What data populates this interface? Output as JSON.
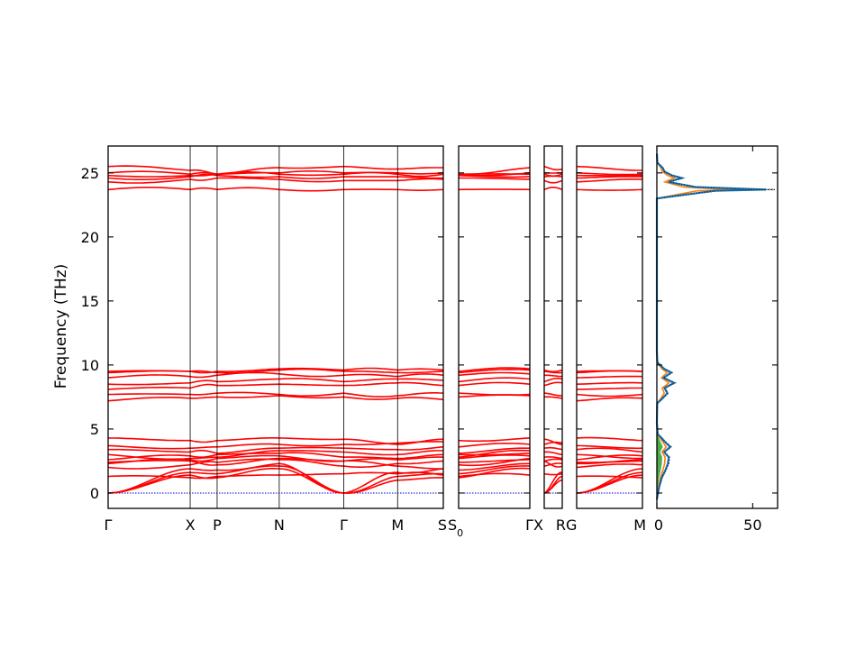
{
  "chart_data": {
    "type": "line",
    "ylabel": "Frequency (THz)",
    "ylim": [
      -1.2,
      27.1
    ],
    "yticks": [
      0,
      5,
      10,
      15,
      20,
      25
    ],
    "panels": [
      {
        "segments": [
          {
            "from": "Γ",
            "to": "X",
            "weight": 3.5
          },
          {
            "from": "X",
            "to": "P",
            "weight": 1.15
          },
          {
            "from": "P",
            "to": "N",
            "weight": 2.65
          },
          {
            "from": "N",
            "to": "Γ",
            "weight": 2.75
          },
          {
            "from": "Γ",
            "to": "M",
            "weight": 2.3
          },
          {
            "from": "M",
            "to": "S",
            "weight": 1.95
          }
        ],
        "labels": [
          "Γ",
          "X",
          "P",
          "N",
          "Γ",
          "M",
          "S"
        ]
      },
      {
        "segments": [
          {
            "from": "S0",
            "to": "Γ",
            "weight": 3.0
          }
        ],
        "labels": [
          "S0",
          "Γ"
        ]
      },
      {
        "segments": [
          {
            "from": "X",
            "to": "R",
            "weight": 0.8
          }
        ],
        "labels": [
          "X",
          "R"
        ]
      },
      {
        "segments": [
          {
            "from": "G",
            "to": "M",
            "weight": 2.8
          }
        ],
        "labels": [
          "G",
          "M"
        ]
      }
    ],
    "band_color": "#ff0000",
    "zero_line_color": "#0000cc",
    "bands": [
      [
        0.0,
        1.4,
        1.2,
        1.9,
        0.0,
        1.0,
        1.2
      ],
      [
        0.0,
        1.6,
        1.5,
        2.1,
        0.0,
        1.3,
        1.5
      ],
      [
        0.0,
        1.9,
        1.8,
        2.3,
        0.0,
        1.6,
        1.9
      ],
      [
        1.3,
        1.2,
        1.3,
        1.4,
        1.5,
        1.5,
        1.4
      ],
      [
        2.0,
        2.2,
        2.4,
        2.6,
        2.1,
        2.3,
        2.5
      ],
      [
        2.3,
        2.6,
        2.7,
        2.9,
        2.5,
        2.6,
        2.8
      ],
      [
        2.6,
        2.9,
        3.0,
        3.1,
        2.8,
        2.7,
        3.0
      ],
      [
        3.0,
        2.7,
        2.8,
        3.3,
        3.2,
        3.0,
        3.3
      ],
      [
        3.4,
        3.2,
        3.1,
        3.5,
        3.5,
        3.4,
        3.6
      ],
      [
        3.7,
        3.5,
        3.6,
        3.8,
        3.8,
        3.9,
        4.0
      ],
      [
        4.3,
        4.1,
        4.1,
        4.3,
        4.2,
        3.8,
        4.2
      ],
      [
        2.4,
        2.5,
        2.2,
        2.7,
        2.5,
        2.1,
        1.9
      ],
      [
        7.2,
        7.4,
        7.5,
        7.6,
        7.5,
        7.4,
        7.3
      ],
      [
        7.7,
        7.7,
        7.8,
        7.7,
        7.8,
        7.6,
        7.8
      ],
      [
        8.1,
        8.2,
        8.4,
        8.5,
        8.4,
        8.6,
        8.4
      ],
      [
        8.5,
        8.6,
        8.7,
        8.9,
        8.7,
        8.9,
        8.8
      ],
      [
        9.0,
        9.1,
        9.2,
        9.3,
        9.2,
        9.1,
        9.2
      ],
      [
        9.4,
        9.5,
        9.4,
        9.6,
        9.5,
        9.4,
        9.5
      ],
      [
        9.5,
        9.5,
        9.5,
        9.7,
        9.6,
        9.6,
        9.6
      ],
      [
        23.7,
        23.7,
        23.7,
        23.7,
        23.7,
        23.7,
        23.7
      ],
      [
        24.3,
        24.5,
        24.6,
        24.5,
        24.4,
        24.4,
        24.5
      ],
      [
        24.6,
        24.7,
        24.8,
        24.7,
        24.7,
        24.7,
        24.6
      ],
      [
        24.8,
        24.8,
        24.9,
        24.9,
        24.9,
        24.9,
        24.9
      ],
      [
        25.0,
        24.9,
        24.9,
        25.0,
        25.0,
        25.0,
        25.0
      ],
      [
        25.5,
        25.2,
        24.9,
        25.4,
        25.5,
        25.3,
        25.4
      ]
    ],
    "dos": {
      "xlim": [
        0,
        63
      ],
      "xticks": [
        0,
        50
      ],
      "total_color": "#1f77b4",
      "partial_colors": [
        "#ff7f0e",
        "#2ca02c",
        "#000000"
      ],
      "points": [
        [
          -0.5,
          0
        ],
        [
          0.5,
          1.2
        ],
        [
          1.2,
          2.6
        ],
        [
          1.8,
          4.5
        ],
        [
          2.3,
          5.8
        ],
        [
          2.8,
          6.2
        ],
        [
          3.2,
          3.8
        ],
        [
          3.6,
          7.0
        ],
        [
          4.0,
          4.2
        ],
        [
          4.3,
          2.5
        ],
        [
          4.6,
          0.4
        ],
        [
          5.5,
          0
        ],
        [
          7.0,
          0.2
        ],
        [
          7.4,
          3.0
        ],
        [
          7.8,
          5.5
        ],
        [
          8.2,
          4.0
        ],
        [
          8.6,
          9.0
        ],
        [
          9.0,
          3.5
        ],
        [
          9.4,
          7.5
        ],
        [
          9.7,
          3.8
        ],
        [
          10.2,
          0.3
        ],
        [
          11,
          0
        ],
        [
          23.0,
          0
        ],
        [
          23.6,
          30
        ],
        [
          23.7,
          57
        ],
        [
          23.9,
          20
        ],
        [
          24.3,
          6
        ],
        [
          24.6,
          13
        ],
        [
          24.8,
          8
        ],
        [
          25.1,
          4
        ],
        [
          25.4,
          3
        ],
        [
          25.8,
          0.3
        ],
        [
          26.5,
          0
        ]
      ]
    }
  }
}
